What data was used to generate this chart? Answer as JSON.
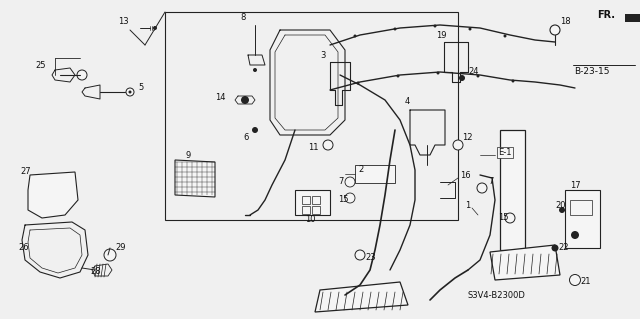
{
  "figsize": [
    6.4,
    3.19
  ],
  "dpi": 100,
  "background_color": "#f0f0f0",
  "line_color": "#222222",
  "text_color": "#111111",
  "diagram_id": "S3V4-B2300D",
  "ref_label": "B-23-15",
  "direction_label": "FR."
}
